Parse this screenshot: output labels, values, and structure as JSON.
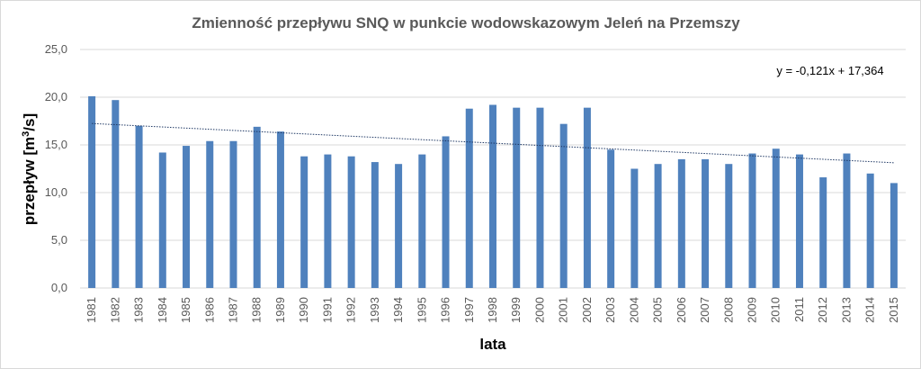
{
  "chart_data": {
    "type": "bar",
    "title": "Zmienność przepływu SNQ w punkcie wodowskazowym  Jeleń na Przemszy",
    "ylabel_main": "przepływ [m",
    "ylabel_sup": "3",
    "ylabel_tail": "/s]",
    "xlabel": "lata",
    "ylim": [
      0,
      25
    ],
    "yticks": [
      "0,0",
      "5,0",
      "10,0",
      "15,0",
      "20,0",
      "25,0"
    ],
    "ytick_values": [
      0,
      5,
      10,
      15,
      20,
      25
    ],
    "grid": true,
    "categories": [
      "1981",
      "1982",
      "1983",
      "1984",
      "1985",
      "1986",
      "1987",
      "1988",
      "1989",
      "1990",
      "1991",
      "1992",
      "1993",
      "1994",
      "1995",
      "1996",
      "1997",
      "1998",
      "1999",
      "2000",
      "2001",
      "2002",
      "2003",
      "2004",
      "2005",
      "2006",
      "2007",
      "2008",
      "2009",
      "2010",
      "2011",
      "2012",
      "2013",
      "2014",
      "2015"
    ],
    "values": [
      20.1,
      19.7,
      17.0,
      14.2,
      14.9,
      15.4,
      15.4,
      16.9,
      16.4,
      13.8,
      14.0,
      13.8,
      13.2,
      13.0,
      14.0,
      15.9,
      18.8,
      19.2,
      18.9,
      18.9,
      17.2,
      18.9,
      14.5,
      12.5,
      13.0,
      13.5,
      13.5,
      13.0,
      14.1,
      14.6,
      14.0,
      11.6,
      14.1,
      12.0,
      11.0
    ],
    "bar_color": "#4f81bd",
    "trendline": {
      "equation": "y = -0,121x + 17,364",
      "slope": -0.121,
      "intercept": 17.364,
      "color": "#1f3864",
      "style": "dotted"
    }
  }
}
